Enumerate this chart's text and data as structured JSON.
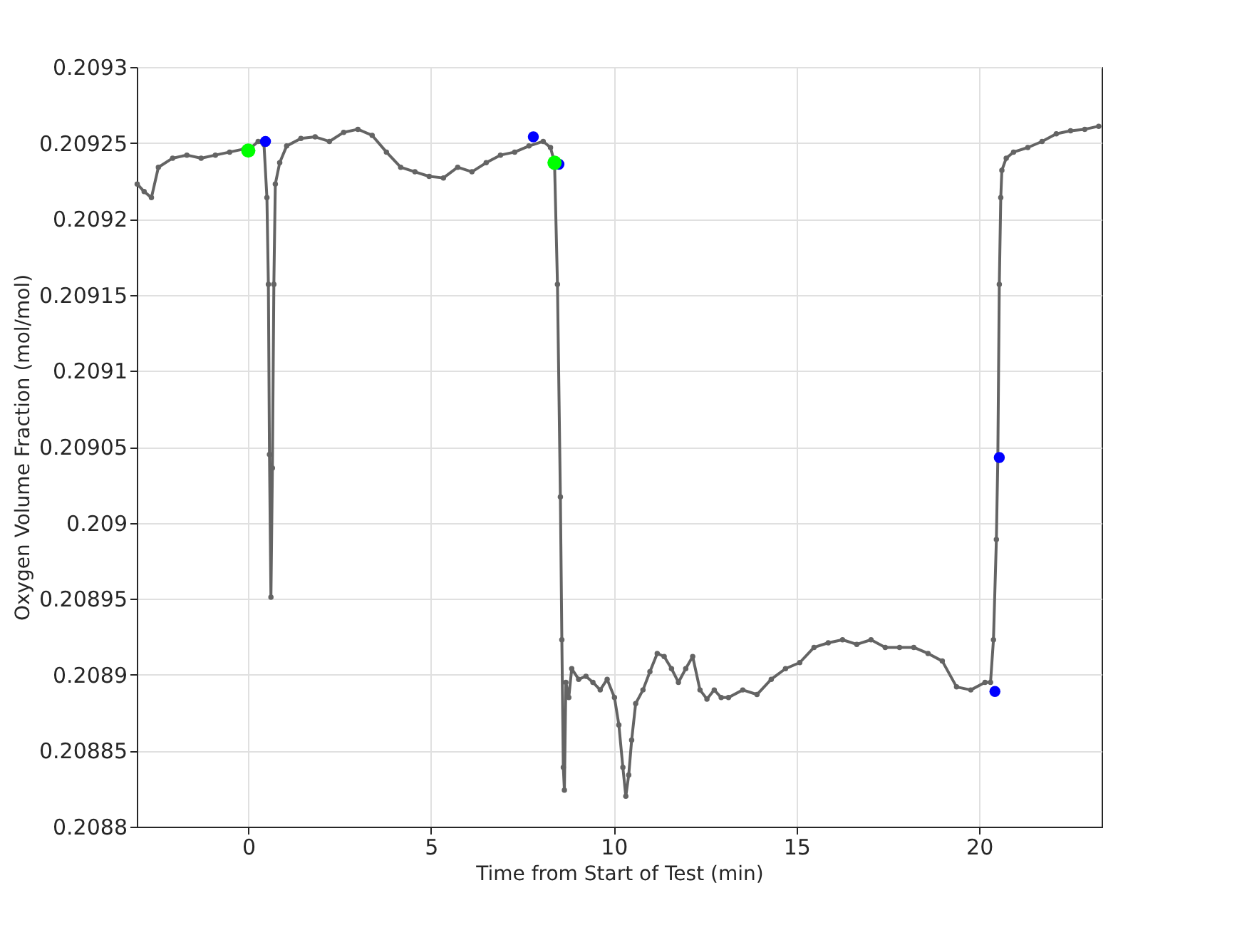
{
  "chart_data": {
    "type": "line",
    "xlabel": "Time from Start of Test (min)",
    "ylabel": "Oxygen Volume Fraction (mol/mol)",
    "xlim": [
      -3.05,
      23.35
    ],
    "xticks": [
      0,
      5,
      10,
      15,
      20
    ],
    "ylim": [
      0.2088,
      0.2093
    ],
    "yticks": [
      0.2088,
      0.20885,
      0.2089,
      0.20895,
      0.209,
      0.20905,
      0.2091,
      0.20915,
      0.2092,
      0.20925,
      0.2093
    ],
    "grid": true,
    "marker": "circle",
    "line_style": "solid",
    "series": [
      {
        "color": "#646464",
        "x": [
          -3.04,
          -2.85,
          -2.65,
          -2.46,
          -2.07,
          -1.68,
          -1.29,
          -0.9,
          -0.51,
          -0.12,
          0.08,
          0.27,
          0.43,
          0.51,
          0.55,
          0.58,
          0.62,
          0.66,
          0.7,
          0.74,
          0.86,
          1.05,
          1.44,
          1.83,
          2.22,
          2.61,
          3.0,
          3.39,
          3.78,
          4.17,
          4.56,
          4.95,
          5.34,
          5.73,
          6.12,
          6.51,
          6.9,
          7.29,
          7.68,
          8.07,
          8.27,
          8.38,
          8.46,
          8.54,
          8.58,
          8.62,
          8.65,
          8.69,
          8.77,
          8.85,
          9.04,
          9.24,
          9.43,
          9.63,
          9.82,
          10.02,
          10.14,
          10.25,
          10.33,
          10.41,
          10.49,
          10.6,
          10.8,
          10.99,
          11.19,
          11.38,
          11.58,
          11.77,
          11.97,
          12.16,
          12.36,
          12.55,
          12.75,
          12.94,
          13.14,
          13.53,
          13.92,
          14.31,
          14.7,
          15.09,
          15.48,
          15.87,
          16.26,
          16.65,
          17.04,
          17.43,
          17.82,
          18.21,
          18.6,
          18.99,
          19.38,
          19.77,
          20.16,
          20.31,
          20.39,
          20.47,
          20.51,
          20.55,
          20.59,
          20.62,
          20.74,
          20.94,
          21.33,
          21.72,
          22.11,
          22.5,
          22.89,
          23.27
        ],
        "values": [
          0.209223,
          0.209218,
          0.209214,
          0.209234,
          0.20924,
          0.209242,
          0.20924,
          0.209242,
          0.209244,
          0.209246,
          0.209247,
          0.209251,
          0.209249,
          0.209214,
          0.209157,
          0.209045,
          0.208951,
          0.209036,
          0.209157,
          0.209223,
          0.209237,
          0.209248,
          0.209253,
          0.209254,
          0.209251,
          0.209257,
          0.209259,
          0.209255,
          0.209244,
          0.209234,
          0.209231,
          0.209228,
          0.209227,
          0.209234,
          0.209231,
          0.209237,
          0.209242,
          0.209244,
          0.209248,
          0.209251,
          0.209247,
          0.209237,
          0.209157,
          0.209017,
          0.208923,
          0.208839,
          0.208824,
          0.208895,
          0.208885,
          0.208904,
          0.208897,
          0.208899,
          0.208895,
          0.20889,
          0.208897,
          0.208885,
          0.208867,
          0.208839,
          0.20882,
          0.208834,
          0.208857,
          0.208881,
          0.20889,
          0.208902,
          0.208914,
          0.208912,
          0.208904,
          0.208895,
          0.208904,
          0.208912,
          0.20889,
          0.208884,
          0.20889,
          0.208885,
          0.208885,
          0.20889,
          0.208887,
          0.208897,
          0.208904,
          0.208908,
          0.208918,
          0.208921,
          0.208923,
          0.20892,
          0.208923,
          0.208918,
          0.208918,
          0.208918,
          0.208914,
          0.208909,
          0.208892,
          0.20889,
          0.208895,
          0.208895,
          0.208923,
          0.208989,
          0.209043,
          0.209157,
          0.209214,
          0.209232,
          0.20924,
          0.209244,
          0.209247,
          0.209251,
          0.209256,
          0.209258,
          0.209259,
          0.209261
        ]
      },
      {
        "type": "scatter",
        "color": "#0000ff",
        "x": [
          0.47,
          7.8,
          8.5,
          20.55,
          20.43
        ],
        "values": [
          0.209251,
          0.209254,
          0.209236,
          0.209043,
          0.208889
        ]
      },
      {
        "type": "scatter",
        "color": "#00ff00",
        "x": [
          0.0,
          8.38
        ],
        "values": [
          0.209245,
          0.209237
        ]
      }
    ]
  }
}
